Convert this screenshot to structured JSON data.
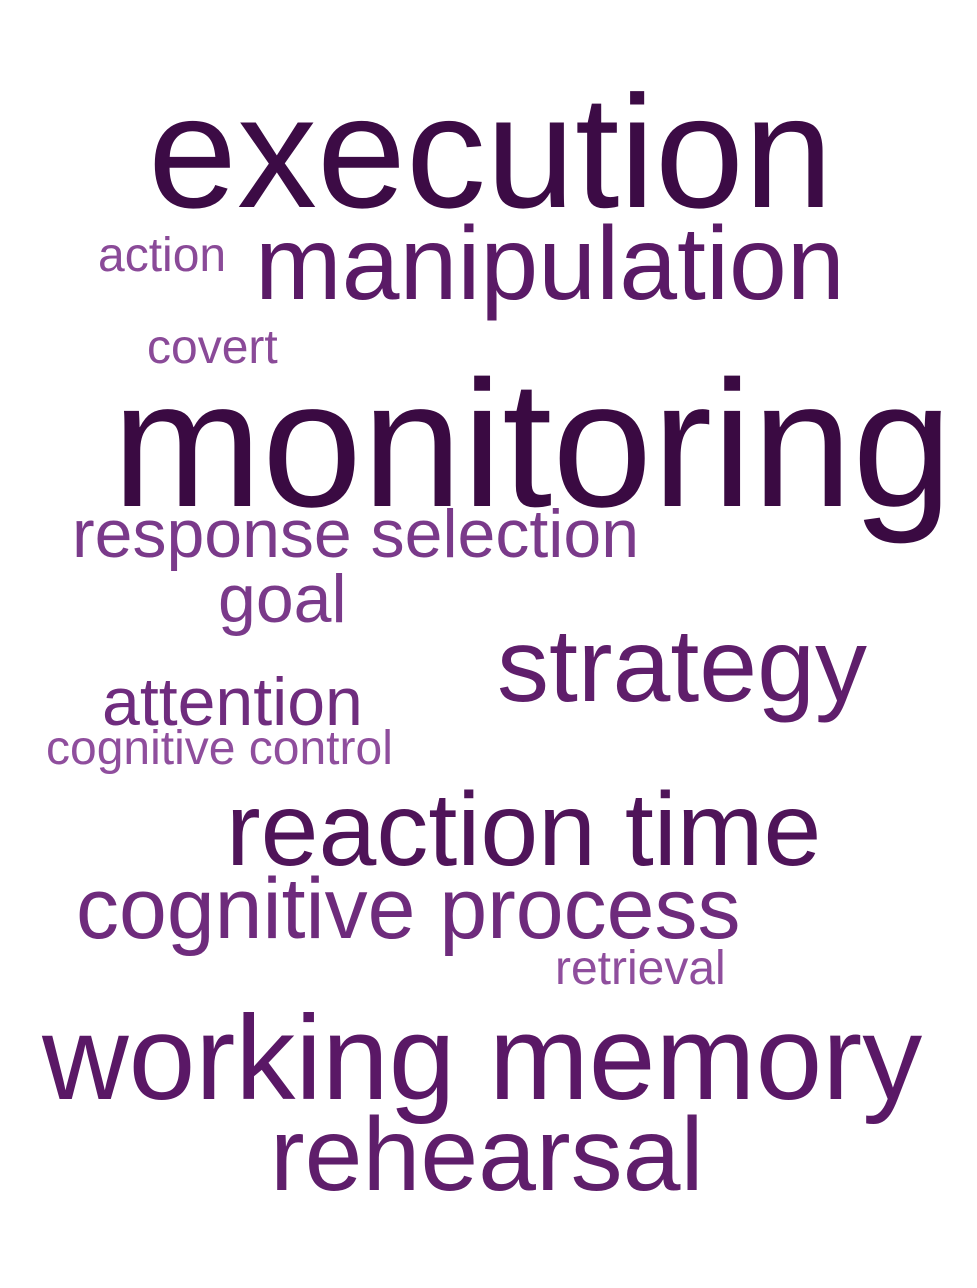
{
  "words": {
    "execution": {
      "text": "execution",
      "color": "#3c0b45"
    },
    "manipulation": {
      "text": "manipulation",
      "color": "#5a1a66"
    },
    "action": {
      "text": "action",
      "color": "#8a4a98"
    },
    "covert": {
      "text": "covert",
      "color": "#8a4a98"
    },
    "monitoring": {
      "text": "monitoring",
      "color": "#3a0a42"
    },
    "response_selection": {
      "text": "response selection",
      "color": "#7a3a8a"
    },
    "goal": {
      "text": "goal",
      "color": "#7a3a8a"
    },
    "strategy": {
      "text": "strategy",
      "color": "#5f1e6b"
    },
    "attention": {
      "text": "attention",
      "color": "#6f2c7e"
    },
    "cognitive_control": {
      "text": "cognitive control",
      "color": "#8f4e9d"
    },
    "reaction_time": {
      "text": "reaction time",
      "color": "#4f1459"
    },
    "cognitive_process": {
      "text": "cognitive process",
      "color": "#6e2b7c"
    },
    "retrieval": {
      "text": "retrieval",
      "color": "#8f4e9d"
    },
    "working_memory": {
      "text": "working memory",
      "color": "#5a1866"
    },
    "rehearsal": {
      "text": "rehearsal",
      "color": "#5f1e6b"
    }
  }
}
